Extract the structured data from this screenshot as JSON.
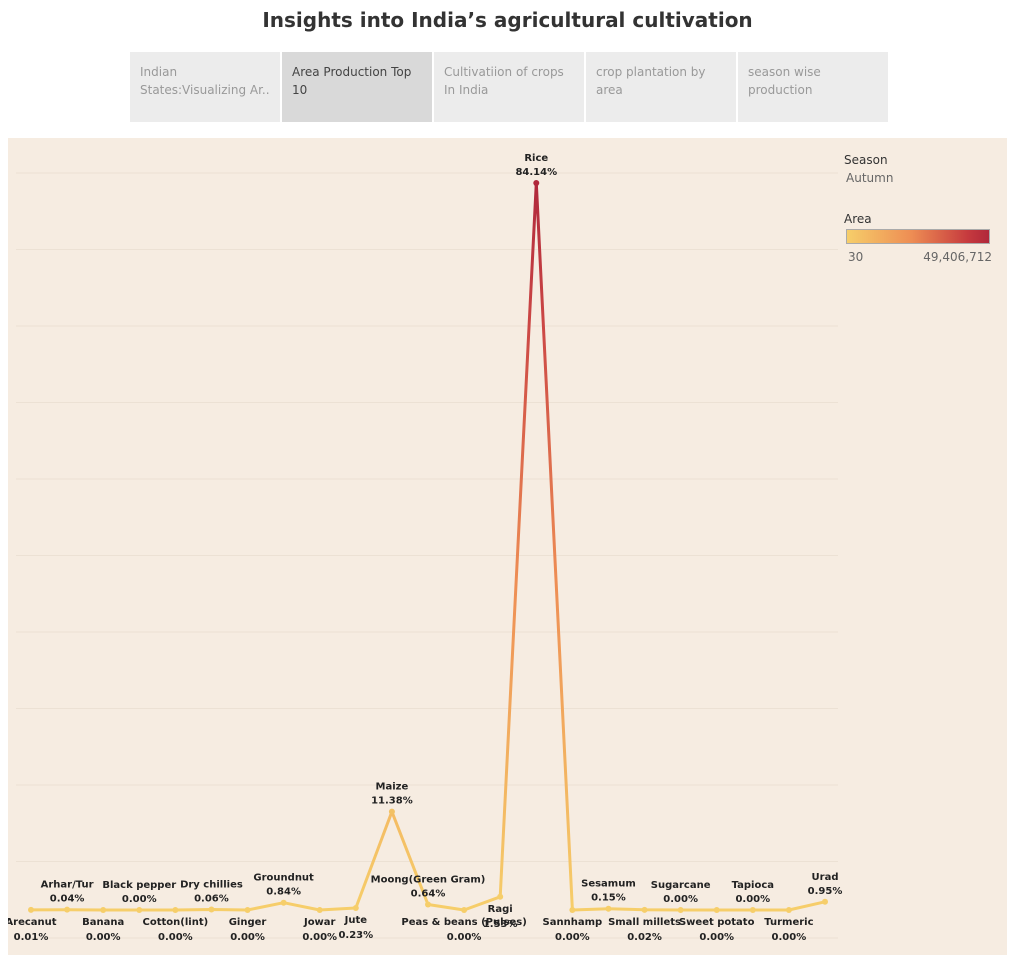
{
  "page": {
    "title": "Insights into India’s agricultural cultivation"
  },
  "tabs": [
    {
      "label": "Indian States:Visualizing Ar..",
      "active": false
    },
    {
      "label": "Area Production Top 10",
      "active": true
    },
    {
      "label": "Cultivatiion of crops In India",
      "active": false
    },
    {
      "label": "crop plantation by area",
      "active": false
    },
    {
      "label": "season wise production",
      "active": false
    }
  ],
  "legend": {
    "season_title": "Season",
    "season_value": "Autumn",
    "area_title": "Area",
    "area_min": "30",
    "area_max": "49,406,712",
    "colors": {
      "low": "#f6ce6a",
      "mid": "#ee8e54",
      "high": "#b0283b"
    }
  },
  "chart_data": {
    "type": "line",
    "title": "",
    "xlabel": "",
    "ylabel": "",
    "ylim": [
      0,
      86
    ],
    "grid": true,
    "legend_position": "top-right",
    "categories": [
      "Arecanut",
      "Arhar/Tur",
      "Banana",
      "Black pepper",
      "Cotton(lint)",
      "Dry chillies",
      "Ginger",
      "Groundnut",
      "Jowar",
      "Jute",
      "Maize",
      "Moong(Green Gram)",
      "Peas & beans (Pulses)",
      "Ragi",
      "Rice",
      "Sannhamp",
      "Sesamum",
      "Small millets",
      "Sugarcane",
      "Sweet potato",
      "Tapioca",
      "Turmeric",
      "Urad"
    ],
    "values": [
      0.01,
      0.04,
      0.0,
      0.0,
      0.0,
      0.06,
      0.0,
      0.84,
      0.0,
      0.23,
      11.38,
      0.64,
      0.0,
      1.53,
      84.14,
      0.0,
      0.15,
      0.02,
      0.0,
      0.0,
      0.0,
      0.0,
      0.95
    ],
    "labels": [
      "0.01%",
      "0.04%",
      "0.00%",
      "0.00%",
      "0.00%",
      "0.06%",
      "0.00%",
      "0.84%",
      "0.00%",
      "0.23%",
      "11.38%",
      "0.64%",
      "0.00%",
      "1.53%",
      "84.14%",
      "0.00%",
      "0.15%",
      "0.02%",
      "0.00%",
      "0.00%",
      "0.00%",
      "0.00%",
      "0.95%"
    ],
    "label_side": [
      "below",
      "above",
      "below",
      "above",
      "below",
      "above",
      "below",
      "above",
      "below",
      "below",
      "above",
      "above",
      "below",
      "below",
      "above",
      "below",
      "above",
      "below",
      "above",
      "below",
      "above",
      "below",
      "above"
    ]
  }
}
